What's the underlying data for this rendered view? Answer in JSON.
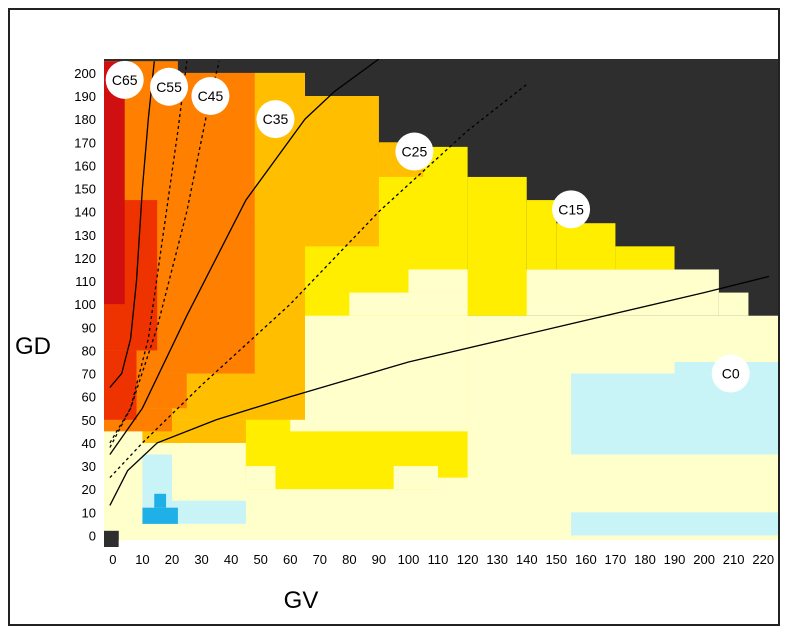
{
  "chart_data": {
    "type": "heatmap",
    "xlabel": "GV",
    "ylabel": "GD",
    "x_ticks": [
      0,
      10,
      20,
      30,
      40,
      50,
      60,
      70,
      80,
      90,
      100,
      110,
      120,
      130,
      140,
      150,
      160,
      170,
      180,
      190,
      200,
      210,
      220
    ],
    "y_ticks": [
      0,
      10,
      20,
      30,
      40,
      50,
      60,
      70,
      80,
      90,
      100,
      110,
      120,
      130,
      140,
      150,
      160,
      170,
      180,
      190,
      200
    ],
    "xlim": [
      -3,
      225
    ],
    "ylim": [
      -5,
      206
    ],
    "colors": {
      "dark": "#2e2e2e",
      "red": "#d01010",
      "red_orange": "#ee3300",
      "orange": "#ff7f00",
      "amber": "#ffbf00",
      "yellow": "#ffee00",
      "cream": "#ffffcc",
      "light_blue": "#c8f4f8",
      "blue": "#1eb0e6",
      "white": "#ffffff"
    },
    "regions": [
      {
        "color": "dark",
        "x": [
          -3,
          225
        ],
        "y": [
          -5,
          206
        ]
      },
      {
        "color": "cream",
        "x": [
          -3,
          225
        ],
        "y": [
          -5,
          95
        ]
      },
      {
        "color": "cream",
        "x": [
          120,
          205
        ],
        "y": [
          95,
          115
        ]
      },
      {
        "color": "cream",
        "x": [
          205,
          215
        ],
        "y": [
          95,
          105
        ]
      },
      {
        "color": "yellow",
        "x": [
          -3,
          120
        ],
        "y": [
          25,
          168
        ]
      },
      {
        "color": "yellow",
        "x": [
          120,
          140
        ],
        "y": [
          95,
          155
        ]
      },
      {
        "color": "yellow",
        "x": [
          140,
          150
        ],
        "y": [
          115,
          145
        ]
      },
      {
        "color": "yellow",
        "x": [
          150,
          170
        ],
        "y": [
          115,
          135
        ]
      },
      {
        "color": "yellow",
        "x": [
          170,
          190
        ],
        "y": [
          115,
          125
        ]
      },
      {
        "color": "cream",
        "x": [
          -3,
          10
        ],
        "y": [
          -5,
          50
        ]
      },
      {
        "color": "cream",
        "x": [
          10,
          45
        ],
        "y": [
          -5,
          40
        ]
      },
      {
        "color": "cream",
        "x": [
          60,
          120
        ],
        "y": [
          45,
          95
        ]
      },
      {
        "color": "cream",
        "x": [
          80,
          120
        ],
        "y": [
          95,
          105
        ]
      },
      {
        "color": "cream",
        "x": [
          100,
          120
        ],
        "y": [
          105,
          115
        ]
      },
      {
        "color": "yellow",
        "x": [
          45,
          110
        ],
        "y": [
          20,
          40
        ]
      },
      {
        "color": "cream",
        "x": [
          45,
          55
        ],
        "y": [
          20,
          30
        ]
      },
      {
        "color": "cream",
        "x": [
          95,
          110
        ],
        "y": [
          20,
          30
        ]
      },
      {
        "color": "amber",
        "x": [
          -3,
          65
        ],
        "y": [
          50,
          205
        ]
      },
      {
        "color": "amber",
        "x": [
          65,
          90
        ],
        "y": [
          125,
          190
        ]
      },
      {
        "color": "amber",
        "x": [
          90,
          105
        ],
        "y": [
          155,
          170
        ]
      },
      {
        "color": "amber",
        "x": [
          10,
          45
        ],
        "y": [
          40,
          50
        ]
      },
      {
        "color": "orange",
        "x": [
          -3,
          48
        ],
        "y": [
          70,
          205
        ]
      },
      {
        "color": "orange",
        "x": [
          -3,
          25
        ],
        "y": [
          55,
          70
        ]
      },
      {
        "color": "orange",
        "x": [
          -3,
          20
        ],
        "y": [
          45,
          55
        ]
      },
      {
        "color": "red_orange",
        "x": [
          -3,
          15
        ],
        "y": [
          80,
          145
        ]
      },
      {
        "color": "red_orange",
        "x": [
          -3,
          8
        ],
        "y": [
          50,
          80
        ]
      },
      {
        "color": "red",
        "x": [
          -3,
          4
        ],
        "y": [
          100,
          205
        ]
      },
      {
        "color": "dark",
        "x": [
          22,
          225
        ],
        "y": [
          200,
          206
        ]
      },
      {
        "color": "light_blue",
        "x": [
          155,
          225
        ],
        "y": [
          35,
          70
        ]
      },
      {
        "color": "light_blue",
        "x": [
          190,
          225
        ],
        "y": [
          70,
          75
        ]
      },
      {
        "color": "light_blue",
        "x": [
          155,
          225
        ],
        "y": [
          0,
          10
        ]
      },
      {
        "color": "light_blue",
        "x": [
          10,
          20
        ],
        "y": [
          5,
          35
        ]
      },
      {
        "color": "light_blue",
        "x": [
          20,
          45
        ],
        "y": [
          5,
          15
        ]
      },
      {
        "color": "blue",
        "x": [
          10,
          22
        ],
        "y": [
          5,
          12
        ]
      },
      {
        "color": "blue",
        "x": [
          14,
          18
        ],
        "y": [
          12,
          18
        ]
      },
      {
        "color": "dark",
        "x": [
          -3,
          2
        ],
        "y": [
          -5,
          2
        ]
      },
      {
        "color": "white",
        "x": [
          2,
          225
        ],
        "y": [
          -5,
          -2
        ]
      }
    ],
    "curves": [
      {
        "label": "C65",
        "style": "solid",
        "points": [
          [
            -1,
            64
          ],
          [
            3,
            70
          ],
          [
            6,
            85
          ],
          [
            8,
            110
          ],
          [
            10,
            150
          ],
          [
            12,
            180
          ],
          [
            14,
            205
          ]
        ]
      },
      {
        "label": "C55",
        "style": "dashed",
        "points": [
          [
            -1,
            40
          ],
          [
            6,
            55
          ],
          [
            12,
            85
          ],
          [
            17,
            130
          ],
          [
            22,
            175
          ],
          [
            25,
            205
          ]
        ]
      },
      {
        "label": "C45",
        "style": "dashed",
        "points": [
          [
            -1,
            38
          ],
          [
            6,
            55
          ],
          [
            15,
            90
          ],
          [
            25,
            140
          ],
          [
            33,
            190
          ],
          [
            36,
            205
          ]
        ]
      },
      {
        "label": "C35",
        "style": "solid",
        "points": [
          [
            -1,
            35
          ],
          [
            10,
            55
          ],
          [
            25,
            95
          ],
          [
            45,
            145
          ],
          [
            65,
            180
          ],
          [
            75,
            192
          ],
          [
            90,
            206
          ]
        ]
      },
      {
        "label": "C25",
        "style": "dashed",
        "points": [
          [
            -1,
            25
          ],
          [
            10,
            40
          ],
          [
            30,
            65
          ],
          [
            60,
            100
          ],
          [
            90,
            140
          ],
          [
            120,
            175
          ],
          [
            140,
            195
          ]
        ]
      },
      {
        "label": "C15",
        "style": "solid",
        "points": [
          [
            -1,
            13
          ],
          [
            5,
            28
          ],
          [
            15,
            40
          ],
          [
            35,
            50
          ],
          [
            60,
            60
          ],
          [
            100,
            75
          ],
          [
            150,
            90
          ],
          [
            200,
            105
          ],
          [
            222,
            112
          ]
        ]
      }
    ],
    "zone_labels": [
      {
        "text": "C65",
        "x": 4,
        "y": 197
      },
      {
        "text": "C55",
        "x": 19,
        "y": 194
      },
      {
        "text": "C45",
        "x": 33,
        "y": 190
      },
      {
        "text": "C35",
        "x": 55,
        "y": 180
      },
      {
        "text": "C25",
        "x": 102,
        "y": 166
      },
      {
        "text": "C15",
        "x": 155,
        "y": 141
      },
      {
        "text": "C0",
        "x": 209,
        "y": 70
      }
    ]
  }
}
